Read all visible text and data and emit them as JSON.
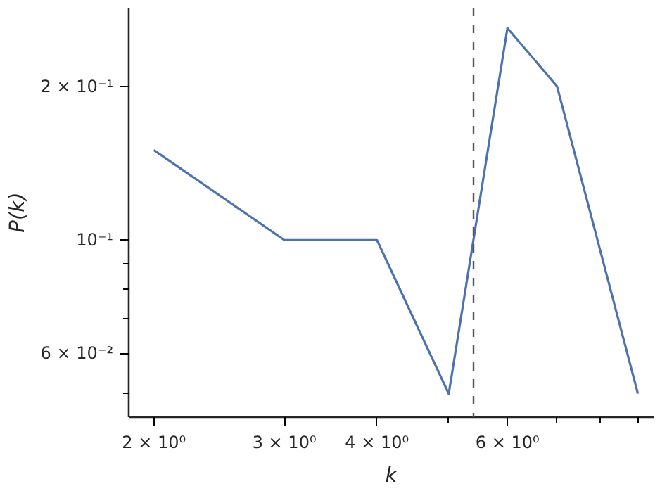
{
  "chart_data": {
    "type": "line",
    "xlabel": "k",
    "ylabel": "P(k)",
    "log": "xy",
    "grid": false,
    "line_style": "solid",
    "x": [
      2,
      3,
      4,
      5,
      6,
      7,
      9
    ],
    "series": [
      {
        "color": "#4c72b0",
        "values": [
          0.15,
          0.1,
          0.1,
          0.05,
          0.26,
          0.2,
          0.05
        ]
      }
    ],
    "xlim": [
      1.85,
      9.45
    ],
    "ylim": [
      0.045,
      0.285
    ],
    "xticks": [
      {
        "value": 2,
        "label": "2 × 10⁰"
      },
      {
        "value": 3,
        "label": "3 × 10⁰"
      },
      {
        "value": 4,
        "label": "4 × 10⁰"
      },
      {
        "value": 5,
        "label": null
      },
      {
        "value": 6,
        "label": "6 × 10⁰"
      },
      {
        "value": 7,
        "label": null
      },
      {
        "value": 8,
        "label": null
      },
      {
        "value": 9,
        "label": null
      }
    ],
    "yticks": [
      {
        "value": 0.05,
        "label": null
      },
      {
        "value": 0.06,
        "label": "6 × 10⁻²"
      },
      {
        "value": 0.07,
        "label": null
      },
      {
        "value": 0.08,
        "label": null
      },
      {
        "value": 0.09,
        "label": null
      },
      {
        "value": 0.1,
        "label": "10⁻¹"
      },
      {
        "value": 0.2,
        "label": "2 × 10⁻¹"
      }
    ],
    "ref_lines": [
      {
        "axis": "x",
        "value": 5.4,
        "color": "#555555",
        "line_style": "dashed"
      }
    ]
  }
}
